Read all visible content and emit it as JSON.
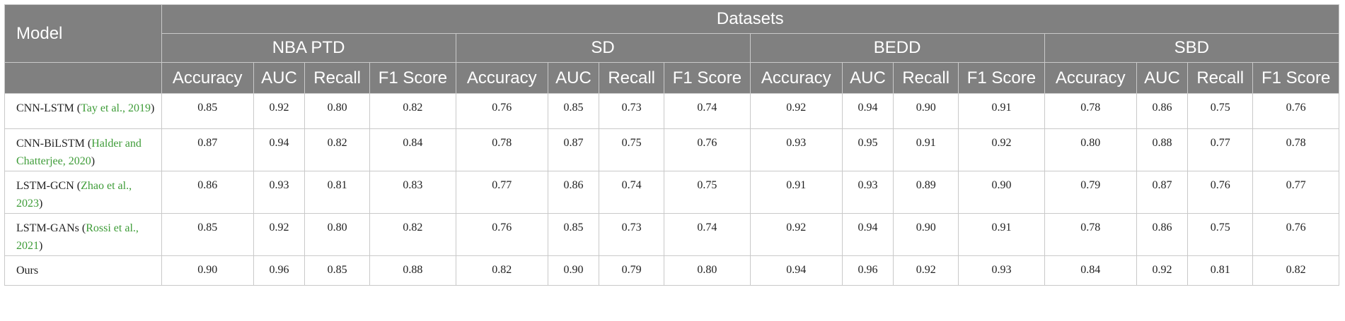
{
  "header": {
    "model_label": "Model",
    "datasets_label": "Datasets",
    "dataset_groups": [
      "NBA PTD",
      "SD",
      "BEDD",
      "SBD"
    ],
    "metrics": [
      "Accuracy",
      "AUC",
      "Recall",
      "F1 Score"
    ]
  },
  "rows": [
    {
      "model_name": "CNN-LSTM",
      "citation": "Tay et al., 2019",
      "values": [
        "0.85",
        "0.92",
        "0.80",
        "0.82",
        "0.76",
        "0.85",
        "0.73",
        "0.74",
        "0.92",
        "0.94",
        "0.90",
        "0.91",
        "0.78",
        "0.86",
        "0.75",
        "0.76"
      ]
    },
    {
      "model_name": "CNN-BiLSTM",
      "citation": "Halder and Chatterjee, 2020",
      "values": [
        "0.87",
        "0.94",
        "0.82",
        "0.84",
        "0.78",
        "0.87",
        "0.75",
        "0.76",
        "0.93",
        "0.95",
        "0.91",
        "0.92",
        "0.80",
        "0.88",
        "0.77",
        "0.78"
      ]
    },
    {
      "model_name": "LSTM-GCN",
      "citation": "Zhao et al., 2023",
      "values": [
        "0.86",
        "0.93",
        "0.81",
        "0.83",
        "0.77",
        "0.86",
        "0.74",
        "0.75",
        "0.91",
        "0.93",
        "0.89",
        "0.90",
        "0.79",
        "0.87",
        "0.76",
        "0.77"
      ]
    },
    {
      "model_name": "LSTM-GANs",
      "citation": "Rossi et al., 2021",
      "values": [
        "0.85",
        "0.92",
        "0.80",
        "0.82",
        "0.76",
        "0.85",
        "0.73",
        "0.74",
        "0.92",
        "0.94",
        "0.90",
        "0.91",
        "0.78",
        "0.86",
        "0.75",
        "0.76"
      ]
    },
    {
      "model_name": "Ours",
      "citation": "",
      "values": [
        "0.90",
        "0.96",
        "0.85",
        "0.88",
        "0.82",
        "0.90",
        "0.79",
        "0.80",
        "0.94",
        "0.96",
        "0.92",
        "0.93",
        "0.84",
        "0.92",
        "0.81",
        "0.82"
      ]
    }
  ],
  "colors": {
    "header_bg": "#808080",
    "header_text": "#ffffff",
    "citation_link": "#3e9c38",
    "grid_line": "#c9c9c9"
  }
}
